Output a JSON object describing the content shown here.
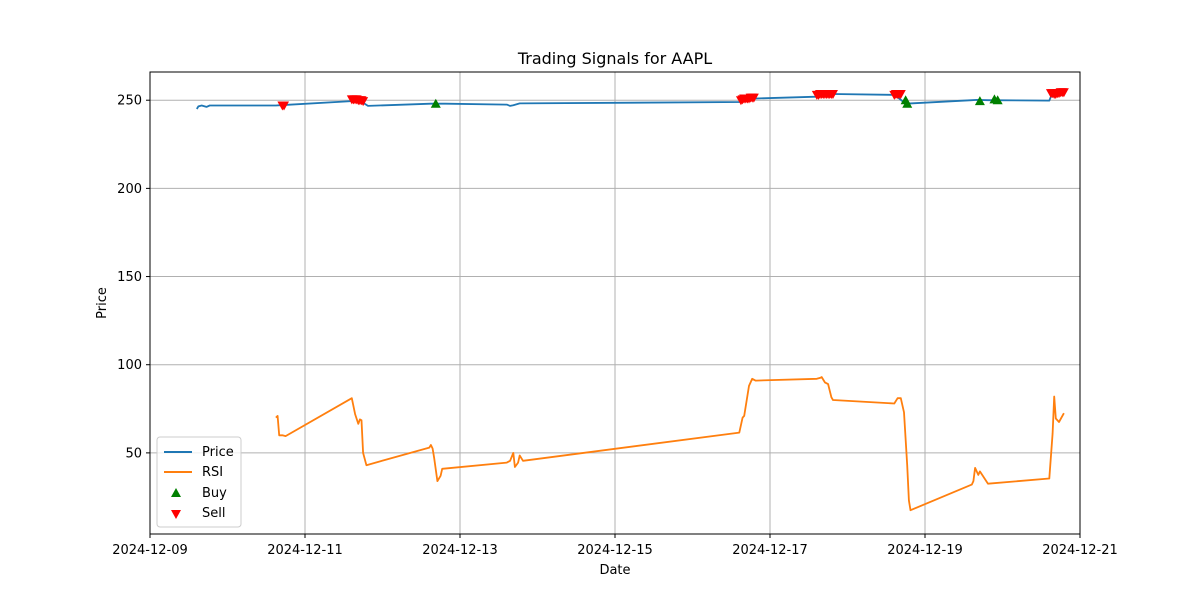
{
  "chart_data": {
    "type": "line",
    "title": "Trading Signals for AAPL",
    "xlabel": "Date",
    "ylabel": "Price",
    "x_ticks": [
      "2024-12-09",
      "2024-12-11",
      "2024-12-13",
      "2024-12-15",
      "2024-12-17",
      "2024-12-19",
      "2024-12-21"
    ],
    "y_ticks": [
      50,
      100,
      150,
      200,
      250
    ],
    "xlim": [
      "2024-12-09 00:00",
      "2024-12-21 00:00"
    ],
    "ylim": [
      4,
      266
    ],
    "grid": true,
    "legend_position": "lower-left",
    "colors": {
      "price": "#1f77b4",
      "rsi": "#ff7f0e",
      "buy": "#008000",
      "sell": "#ff0000",
      "grid": "#b0b0b0"
    },
    "series": [
      {
        "name": "Price",
        "kind": "line",
        "points": [
          [
            "2024-12-09 14:30",
            245
          ],
          [
            "2024-12-09 15:00",
            246.5
          ],
          [
            "2024-12-09 16:00",
            247
          ],
          [
            "2024-12-09 17:30",
            246.2
          ],
          [
            "2024-12-09 18:30",
            247
          ],
          [
            "2024-12-10 15:00",
            247
          ],
          [
            "2024-12-10 16:30",
            247.2
          ],
          [
            "2024-12-11 14:30",
            249.5
          ],
          [
            "2024-12-11 18:00",
            248.6
          ],
          [
            "2024-12-11 19:30",
            246.8
          ],
          [
            "2024-12-12 15:00",
            248
          ],
          [
            "2024-12-12 16:30",
            248
          ],
          [
            "2024-12-12 19:30",
            248
          ],
          [
            "2024-12-13 14:30",
            247.5
          ],
          [
            "2024-12-13 15:30",
            246.8
          ],
          [
            "2024-12-13 16:30",
            247.2
          ],
          [
            "2024-12-13 18:30",
            248.2
          ],
          [
            "2024-12-16 15:00",
            249
          ],
          [
            "2024-12-16 19:30",
            251
          ],
          [
            "2024-12-17 14:30",
            252
          ],
          [
            "2024-12-17 16:00",
            253.5
          ],
          [
            "2024-12-17 19:30",
            253.5
          ],
          [
            "2024-12-18 14:30",
            253
          ],
          [
            "2024-12-18 16:00",
            251
          ],
          [
            "2024-12-18 18:00",
            248
          ],
          [
            "2024-12-19 14:30",
            250
          ],
          [
            "2024-12-19 16:00",
            250.2
          ],
          [
            "2024-12-19 19:30",
            250
          ],
          [
            "2024-12-20 14:30",
            249.8
          ],
          [
            "2024-12-20 15:00",
            252
          ],
          [
            "2024-12-20 18:00",
            253
          ],
          [
            "2024-12-20 19:30",
            254.5
          ]
        ]
      },
      {
        "name": "RSI",
        "kind": "line",
        "points": [
          [
            "2024-12-10 15:00",
            70
          ],
          [
            "2024-12-10 15:30",
            71
          ],
          [
            "2024-12-10 16:00",
            60
          ],
          [
            "2024-12-10 17:00",
            60
          ],
          [
            "2024-12-10 18:00",
            59.5
          ],
          [
            "2024-12-11 14:30",
            81
          ],
          [
            "2024-12-11 15:30",
            72
          ],
          [
            "2024-12-11 16:30",
            66.5
          ],
          [
            "2024-12-11 17:00",
            69
          ],
          [
            "2024-12-11 17:30",
            68.5
          ],
          [
            "2024-12-11 18:00",
            50
          ],
          [
            "2024-12-11 19:00",
            43
          ],
          [
            "2024-12-12 14:30",
            53
          ],
          [
            "2024-12-12 15:00",
            54.5
          ],
          [
            "2024-12-12 15:30",
            52.5
          ],
          [
            "2024-12-12 16:00",
            47
          ],
          [
            "2024-12-12 17:00",
            34
          ],
          [
            "2024-12-12 18:00",
            37
          ],
          [
            "2024-12-12 18:30",
            41
          ],
          [
            "2024-12-13 14:30",
            44.5
          ],
          [
            "2024-12-13 15:30",
            45.5
          ],
          [
            "2024-12-13 16:30",
            50
          ],
          [
            "2024-12-13 17:00",
            42
          ],
          [
            "2024-12-13 18:00",
            44.5
          ],
          [
            "2024-12-13 18:30",
            48.5
          ],
          [
            "2024-12-13 19:30",
            45.5
          ],
          [
            "2024-12-16 14:30",
            61.5
          ],
          [
            "2024-12-16 15:30",
            70
          ],
          [
            "2024-12-16 16:00",
            71
          ],
          [
            "2024-12-16 17:30",
            88
          ],
          [
            "2024-12-16 18:30",
            92
          ],
          [
            "2024-12-16 19:30",
            91
          ],
          [
            "2024-12-17 14:30",
            92
          ],
          [
            "2024-12-17 15:30",
            92.5
          ],
          [
            "2024-12-17 16:00",
            93
          ],
          [
            "2024-12-17 17:00",
            90
          ],
          [
            "2024-12-17 18:00",
            89
          ],
          [
            "2024-12-17 19:00",
            81.5
          ],
          [
            "2024-12-17 19:30",
            80
          ],
          [
            "2024-12-18 14:30",
            78
          ],
          [
            "2024-12-18 15:30",
            81
          ],
          [
            "2024-12-18 16:30",
            81
          ],
          [
            "2024-12-18 17:30",
            73
          ],
          [
            "2024-12-18 18:30",
            43
          ],
          [
            "2024-12-18 19:00",
            23
          ],
          [
            "2024-12-18 19:30",
            17.5
          ],
          [
            "2024-12-19 14:30",
            32
          ],
          [
            "2024-12-19 15:00",
            34
          ],
          [
            "2024-12-19 15:30",
            41.5
          ],
          [
            "2024-12-19 16:30",
            37.5
          ],
          [
            "2024-12-19 17:00",
            39.5
          ],
          [
            "2024-12-19 19:30",
            32.5
          ],
          [
            "2024-12-20 14:30",
            35.5
          ],
          [
            "2024-12-20 15:30",
            61
          ],
          [
            "2024-12-20 16:00",
            82
          ],
          [
            "2024-12-20 16:30",
            69.5
          ],
          [
            "2024-12-20 17:30",
            67.5
          ],
          [
            "2024-12-20 19:00",
            72.5
          ]
        ]
      },
      {
        "name": "Buy",
        "kind": "scatter",
        "marker": "triangle-up",
        "points": [
          [
            "2024-12-12 16:30",
            248
          ],
          [
            "2024-12-18 18:00",
            250
          ],
          [
            "2024-12-18 18:30",
            248
          ],
          [
            "2024-12-19 17:00",
            249.5
          ],
          [
            "2024-12-19 21:30",
            250.5
          ],
          [
            "2024-12-19 22:30",
            250
          ]
        ]
      },
      {
        "name": "Sell",
        "kind": "scatter",
        "marker": "triangle-down",
        "points": [
          [
            "2024-12-10 17:00",
            247
          ],
          [
            "2024-12-10 17:30",
            247
          ],
          [
            "2024-12-11 14:30",
            250.5
          ],
          [
            "2024-12-11 15:00",
            250.5
          ],
          [
            "2024-12-11 15:30",
            250.5
          ],
          [
            "2024-12-11 16:00",
            250.5
          ],
          [
            "2024-12-11 16:30",
            250
          ],
          [
            "2024-12-11 17:00",
            250
          ],
          [
            "2024-12-11 17:30",
            250
          ],
          [
            "2024-12-11 18:00",
            249.5
          ],
          [
            "2024-12-16 15:00",
            250
          ],
          [
            "2024-12-16 15:30",
            250.5
          ],
          [
            "2024-12-16 16:00",
            251
          ],
          [
            "2024-12-16 16:30",
            251
          ],
          [
            "2024-12-16 17:00",
            251
          ],
          [
            "2024-12-16 17:30",
            251
          ],
          [
            "2024-12-16 18:00",
            251.5
          ],
          [
            "2024-12-16 18:30",
            251.5
          ],
          [
            "2024-12-16 19:00",
            251.5
          ],
          [
            "2024-12-17 14:30",
            253
          ],
          [
            "2024-12-17 15:00",
            253
          ],
          [
            "2024-12-17 15:30",
            253.5
          ],
          [
            "2024-12-17 16:00",
            253.5
          ],
          [
            "2024-12-17 16:30",
            253.5
          ],
          [
            "2024-12-17 17:00",
            253.5
          ],
          [
            "2024-12-17 17:30",
            253.5
          ],
          [
            "2024-12-17 18:00",
            253.5
          ],
          [
            "2024-12-17 18:30",
            253.5
          ],
          [
            "2024-12-17 19:00",
            253.5
          ],
          [
            "2024-12-17 19:30",
            253.5
          ],
          [
            "2024-12-18 14:30",
            253
          ],
          [
            "2024-12-18 15:00",
            253.5
          ],
          [
            "2024-12-18 15:30",
            253.5
          ],
          [
            "2024-12-18 16:00",
            253.5
          ],
          [
            "2024-12-18 16:30",
            253.5
          ],
          [
            "2024-12-20 15:00",
            254
          ],
          [
            "2024-12-20 15:30",
            254
          ],
          [
            "2024-12-20 16:00",
            253.5
          ],
          [
            "2024-12-20 16:30",
            253.5
          ],
          [
            "2024-12-20 17:00",
            254
          ],
          [
            "2024-12-20 17:30",
            254
          ],
          [
            "2024-12-20 18:00",
            254.5
          ],
          [
            "2024-12-20 18:30",
            254.5
          ],
          [
            "2024-12-20 19:00",
            254.5
          ]
        ]
      }
    ]
  }
}
